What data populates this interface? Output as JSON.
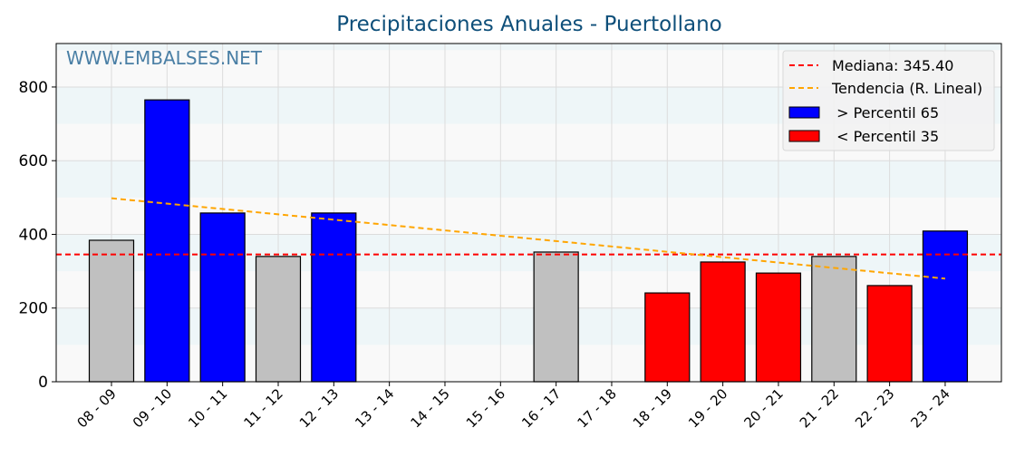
{
  "chart_data": {
    "type": "bar",
    "title": "Precipitaciones Anuales - Puertollano",
    "watermark": "WWW.EMBALSES.NET",
    "xlabel": "",
    "ylabel": "",
    "ylim": [
      0,
      918
    ],
    "yticks": [
      0,
      200,
      400,
      600,
      800
    ],
    "categories": [
      "08 - 09",
      "09 - 10",
      "10 - 11",
      "11 - 12",
      "12 - 13",
      "13 - 14",
      "14 - 15",
      "15 - 16",
      "16 - 17",
      "17 - 18",
      "18 - 19",
      "19 - 20",
      "20 - 21",
      "21 - 22",
      "22 - 23",
      "23 - 24"
    ],
    "values": [
      384,
      765,
      458,
      340,
      458,
      null,
      null,
      null,
      352,
      null,
      241,
      325,
      295,
      340,
      261,
      409
    ],
    "classes": [
      "mid",
      "high",
      "high",
      "mid",
      "high",
      null,
      null,
      null,
      "mid",
      null,
      "low",
      "low",
      "low",
      "mid",
      "low",
      "high"
    ],
    "median": 345.4,
    "trend": {
      "start": 498,
      "end": 280
    },
    "legend": {
      "placement": "top-right",
      "items": [
        "Mediana: 345.40",
        "Tendencia (R. Lineal)",
        " > Percentil 65",
        " < Percentil 35"
      ]
    },
    "colors": {
      "high": "#0000ff",
      "low": "#ff0000",
      "mid": "#c0c0c0",
      "median": "#ff0000",
      "trend": "#ffa500",
      "title": "#0e4f7a",
      "watermark": "#4a7fa5"
    }
  }
}
